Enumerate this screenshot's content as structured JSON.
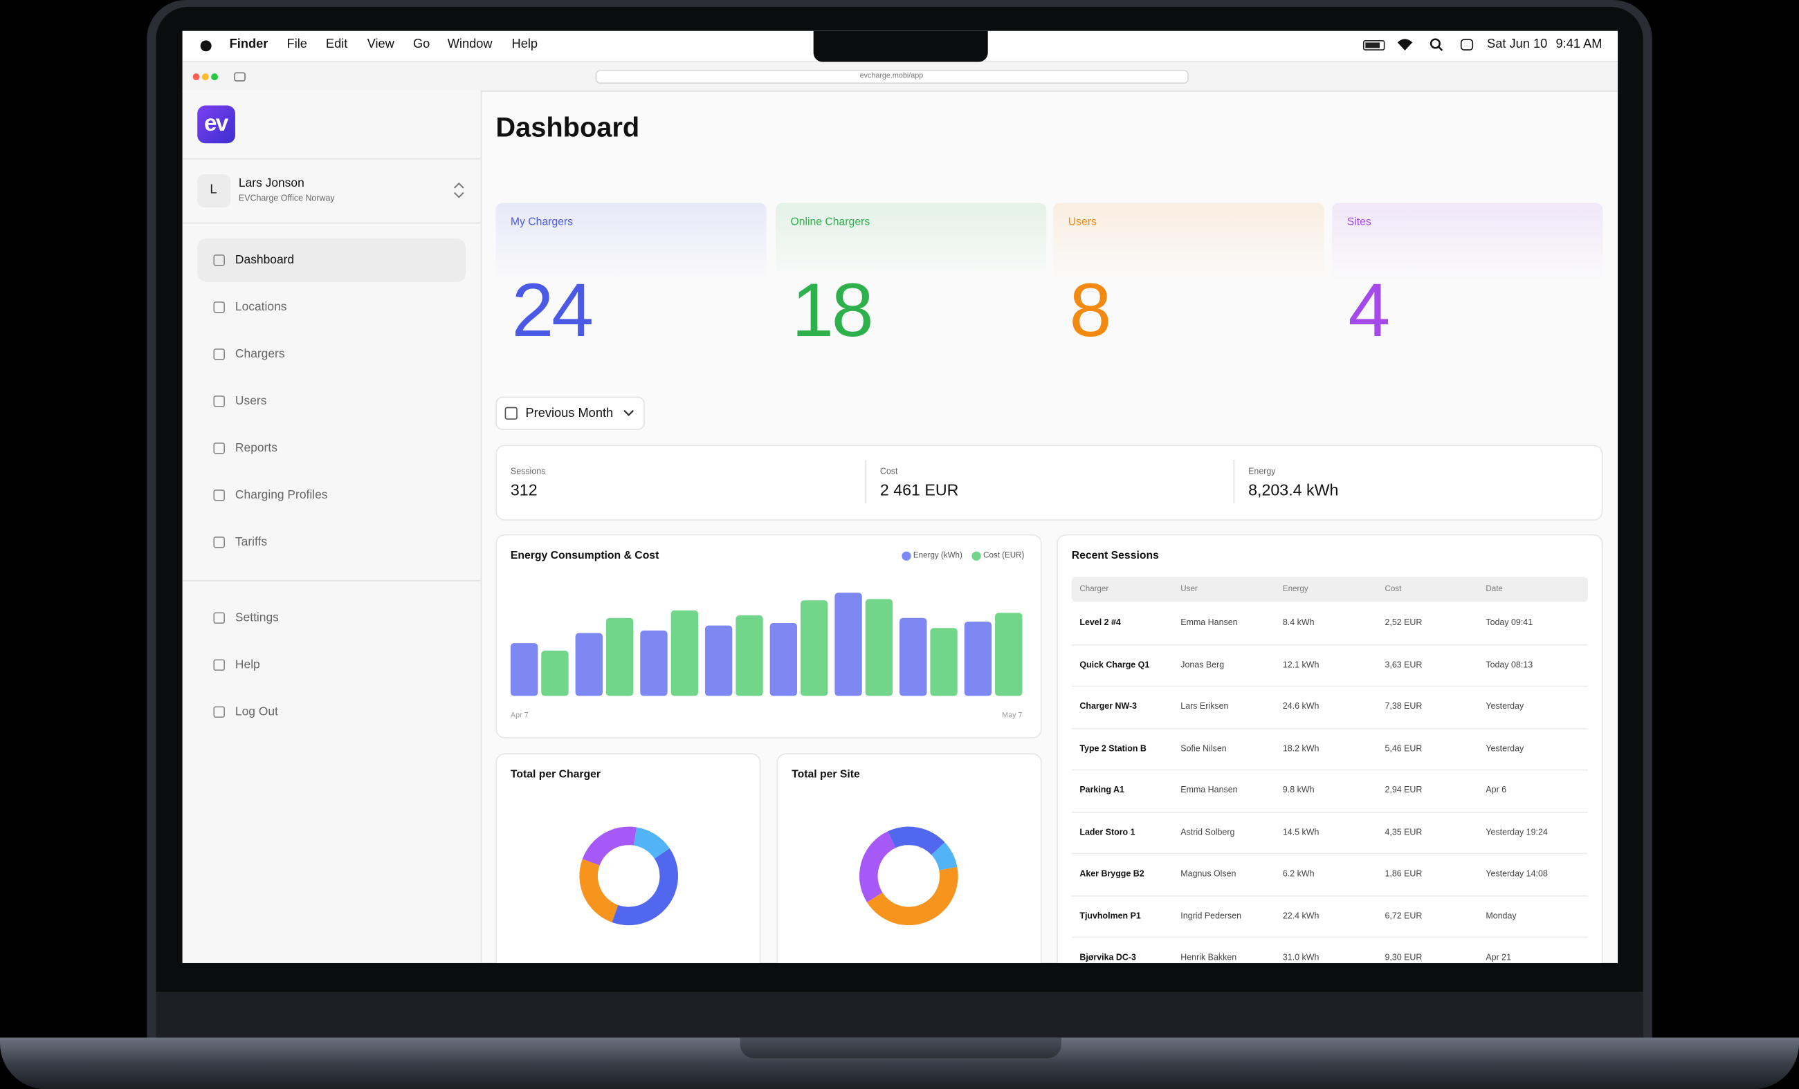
{
  "menubar": {
    "app": "Finder",
    "items": [
      "File",
      "Edit",
      "View",
      "Go",
      "Window",
      "Help"
    ],
    "date": "Sat Jun 10",
    "time": "9:41 AM"
  },
  "browser": {
    "url": "evcharge.mobi/app"
  },
  "sidebar": {
    "logo": "ev",
    "user": {
      "initial": "L",
      "name": "Lars Jonson",
      "org": "EVCharge Office Norway"
    },
    "nav": [
      "Dashboard",
      "Locations",
      "Chargers",
      "Users",
      "Reports",
      "Charging Profiles",
      "Tariffs"
    ],
    "footer_nav": [
      "Settings",
      "Help",
      "Log Out"
    ]
  },
  "main": {
    "title": "Dashboard",
    "stats": [
      {
        "label": "My Chargers",
        "value": 24,
        "color": "#4b5ae6"
      },
      {
        "label": "Online Chargers",
        "value": 18,
        "color": "#2eb14d"
      },
      {
        "label": "Users",
        "value": 8,
        "color": "#f28a12"
      },
      {
        "label": "Sites",
        "value": 4,
        "color": "#a449ea"
      }
    ],
    "period": "Previous Month",
    "summary": [
      {
        "label": "Sessions",
        "value": "312"
      },
      {
        "label": "Cost",
        "value": "2 461 EUR"
      },
      {
        "label": "Energy",
        "value": "8,203.4 kWh"
      }
    ],
    "sessions": {
      "title": "Recent Sessions",
      "columns": [
        "Charger",
        "User",
        "Energy",
        "Cost",
        "Date"
      ],
      "rows": [
        [
          "Level 2 #4",
          "Emma Hansen",
          "8.4 kWh",
          "2,52 EUR",
          "Today 09:41"
        ],
        [
          "Quick Charge Q1",
          "Jonas Berg",
          "12.1 kWh",
          "3,63 EUR",
          "Today 08:13"
        ],
        [
          "Charger NW-3",
          "Lars Eriksen",
          "24.6 kWh",
          "7,38 EUR",
          "Yesterday"
        ],
        [
          "Type 2 Station B",
          "Sofie Nilsen",
          "18.2 kWh",
          "5,46 EUR",
          "Yesterday"
        ],
        [
          "Parking A1",
          "Emma Hansen",
          "9.8 kWh",
          "2,94 EUR",
          "Apr 6"
        ],
        [
          "Lader Storo 1",
          "Astrid Solberg",
          "14.5 kWh",
          "4,35 EUR",
          "Yesterday 19:24"
        ],
        [
          "Aker Brygge B2",
          "Magnus Olsen",
          "6.2 kWh",
          "1,86 EUR",
          "Yesterday 14:08"
        ],
        [
          "Tjuvholmen P1",
          "Ingrid Pedersen",
          "22.4 kWh",
          "6,72 EUR",
          "Monday"
        ],
        [
          "Bjørvika DC-3",
          "Henrik Bakken",
          "31.0 kWh",
          "9,30 EUR",
          "Apr 21"
        ]
      ]
    }
  },
  "chart_data": [
    {
      "type": "bar",
      "title": "Energy Consumption & Cost",
      "categories": [
        "Apr 7",
        null,
        null,
        null,
        null,
        null,
        null,
        "May 7"
      ],
      "series": [
        {
          "name": "Energy (kWh)",
          "color": "#7d88f3",
          "values": [
            42,
            50,
            52,
            56,
            58,
            82,
            62,
            59
          ]
        },
        {
          "name": "Cost (EUR)",
          "color": "#72d68a",
          "values": [
            36,
            62,
            68,
            64,
            76,
            77,
            54,
            66
          ]
        }
      ]
    },
    {
      "type": "pie",
      "title": "Total per Charger",
      "values": [
        22,
        13,
        40,
        25
      ],
      "colors": [
        "#a659f6",
        "#52b4f7",
        "#5168ee",
        "#f7941d"
      ]
    },
    {
      "type": "pie",
      "title": "Total per Site",
      "values": [
        20,
        9,
        44,
        27
      ],
      "colors": [
        "#5168ee",
        "#52b4f7",
        "#f7941d",
        "#a659f6"
      ]
    }
  ]
}
